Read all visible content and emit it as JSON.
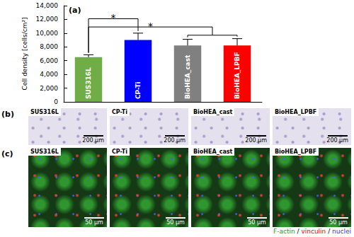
{
  "chart_data": {
    "type": "bar",
    "panel_label": "(a)",
    "y_label": "Cell density [cells/cm²]",
    "categories": [
      "SUS316L",
      "CP-Ti",
      "BioHEA_cast",
      "BioHEA_LPBF"
    ],
    "values": [
      6500,
      9000,
      8200,
      8200
    ],
    "errors": [
      350,
      1000,
      900,
      1000
    ],
    "colors": [
      "#70ad47",
      "#0000ff",
      "#808080",
      "#ff0000"
    ],
    "ylim": [
      0,
      14000
    ],
    "yticks": [
      0,
      2000,
      4000,
      6000,
      8000,
      10000,
      12000,
      14000
    ],
    "tick_labels": "y",
    "grid": false,
    "significance": [
      {
        "from": "SUS316L",
        "to": [
          "CP-Ti"
        ],
        "label": "*"
      },
      {
        "from": "SUS316L",
        "to": [
          "BioHEA_cast",
          "BioHEA_LPBF"
        ],
        "label": "*"
      }
    ]
  },
  "panels": [
    {
      "label": "(b)",
      "scale_bar": "200 μm",
      "images": [
        "SUS316L",
        "CP-Ti",
        "BioHEA_cast",
        "BioHEA_LPBF"
      ]
    },
    {
      "label": "(c)",
      "scale_bar": "50 μm",
      "images": [
        "SUS316L",
        "CP-Ti",
        "BioHEA_cast",
        "BioHEA_LPBF"
      ],
      "stain_legend": [
        {
          "text": "F-actin",
          "color": "#00b000"
        },
        {
          "text": "vinculin",
          "color": "#ff0000"
        },
        {
          "text": "nuclei",
          "color": "#3030ff"
        }
      ],
      "separator": "/"
    }
  ]
}
